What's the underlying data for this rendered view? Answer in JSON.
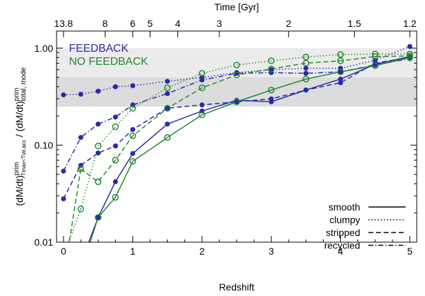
{
  "chart_data": {
    "type": "line",
    "xlabel": "Redshift",
    "top_xlabel": "Time [Gyr]",
    "ylabel_parts": {
      "numerator": "(dM/dt)",
      "numerator_sup": "prim",
      "numerator_sub": "Tmax<Tvir,acc",
      "separator": " / ",
      "denominator": "(dM/dt)",
      "denominator_sup": "prim",
      "denominator_sub": "total, mode"
    },
    "y_scale": "log",
    "xlim": [
      -0.1,
      5.1
    ],
    "ylim": [
      0.01,
      1.5
    ],
    "x_ticks": [
      "0",
      "1",
      "2",
      "3",
      "4",
      "5"
    ],
    "y_ticks": [
      {
        "value": 0.01,
        "label": "0.01"
      },
      {
        "value": 0.1,
        "label": "0.10"
      },
      {
        "value": 1.0,
        "label": "1.00"
      }
    ],
    "top_ticks": [
      {
        "label": "13.8",
        "z": 0.0
      },
      {
        "label": "8",
        "z": 0.6
      },
      {
        "label": "6",
        "z": 1.0
      },
      {
        "label": "5",
        "z": 1.25
      },
      {
        "label": "4",
        "z": 1.65
      },
      {
        "label": "3",
        "z": 2.25
      },
      {
        "label": "2",
        "z": 3.25
      },
      {
        "label": "1.5",
        "z": 4.2
      },
      {
        "label": "1.2",
        "z": 5.0
      }
    ],
    "shaded_bands": [
      {
        "y_from": 0.25,
        "y_to": 1.0,
        "color": "#ebebeb"
      },
      {
        "y_from": 0.25,
        "y_to": 0.5,
        "color": "#dcdcdc"
      }
    ],
    "group_labels": [
      {
        "text": "FEEDBACK",
        "color": "#2a2aaa"
      },
      {
        "text": "NO FEEDBACK",
        "color": "#22882e"
      }
    ],
    "legend": [
      {
        "label": "smooth",
        "style": "solid"
      },
      {
        "label": "clumpy",
        "style": "dotted"
      },
      {
        "label": "stripped",
        "style": "dashed"
      },
      {
        "label": "recycled",
        "style": "dashdot"
      }
    ],
    "legend_position": "bottom-right",
    "series": [
      {
        "group": "FEEDBACK",
        "mode": "smooth",
        "color": "#2a2aaa",
        "style": "solid",
        "marker": "filled",
        "x": [
          0.5,
          0.75,
          1.0,
          1.5,
          2.0,
          2.5,
          3.0,
          3.5,
          4.0,
          4.5,
          5.0
        ],
        "y": [
          0.018,
          0.042,
          0.082,
          0.165,
          0.225,
          0.29,
          0.28,
          0.37,
          0.48,
          0.68,
          0.82
        ]
      },
      {
        "group": "FEEDBACK",
        "mode": "clumpy",
        "color": "#2a2aaa",
        "style": "dotted",
        "marker": "filled",
        "x": [
          0.0,
          0.25,
          0.5,
          0.75,
          1.0,
          1.5,
          2.0,
          2.5,
          3.0,
          3.5,
          4.0,
          4.5,
          5.0
        ],
        "y": [
          0.33,
          0.335,
          0.36,
          0.4,
          0.41,
          0.455,
          0.5,
          0.56,
          0.6,
          0.62,
          0.62,
          0.75,
          1.04
        ]
      },
      {
        "group": "FEEDBACK",
        "mode": "stripped",
        "color": "#2a2aaa",
        "style": "dashed",
        "marker": "filled",
        "x": [
          0.0,
          0.25,
          0.5,
          0.75,
          1.0,
          1.5,
          2.0,
          2.5,
          3.0,
          3.5,
          4.0,
          4.5,
          5.0
        ],
        "y": [
          0.028,
          0.062,
          0.083,
          0.098,
          0.145,
          0.24,
          0.26,
          0.28,
          0.3,
          0.37,
          0.44,
          0.7,
          0.8
        ]
      },
      {
        "group": "FEEDBACK",
        "mode": "recycled",
        "color": "#2a2aaa",
        "style": "dashdot",
        "marker": "filled",
        "x": [
          0.0,
          0.25,
          0.5,
          0.75,
          1.0,
          1.5,
          2.0,
          2.5,
          3.0,
          3.5,
          4.0,
          4.5,
          5.0
        ],
        "y": [
          0.054,
          0.12,
          0.165,
          0.195,
          0.26,
          0.34,
          0.47,
          0.55,
          0.56,
          0.55,
          0.57,
          0.67,
          0.78
        ]
      },
      {
        "group": "NO FEEDBACK",
        "mode": "smooth",
        "color": "#22882e",
        "style": "solid",
        "marker": "open",
        "x": [
          0.5,
          0.75,
          1.0,
          1.5,
          2.0,
          2.5,
          3.0,
          3.5,
          4.0,
          4.5,
          5.0
        ],
        "y": [
          0.018,
          0.029,
          0.068,
          0.12,
          0.205,
          0.28,
          0.37,
          0.48,
          0.57,
          0.66,
          0.8
        ]
      },
      {
        "group": "NO FEEDBACK",
        "mode": "clumpy",
        "color": "#22882e",
        "style": "dotted",
        "marker": "open",
        "x": [
          0.25,
          0.5,
          0.75,
          1.0,
          1.5,
          2.0,
          2.5,
          3.0,
          3.5,
          4.0,
          4.5,
          5.0
        ],
        "y": [
          0.022,
          0.098,
          0.155,
          0.24,
          0.39,
          0.55,
          0.67,
          0.74,
          0.81,
          0.86,
          0.87,
          0.87
        ]
      },
      {
        "group": "NO FEEDBACK",
        "mode": "stripped",
        "color": "#22882e",
        "style": "dashed",
        "marker": "open",
        "x": [
          0.25,
          0.5,
          0.75,
          1.0,
          1.5,
          2.0,
          2.5,
          3.0,
          3.5,
          4.0,
          4.5,
          5.0
        ],
        "y": [
          0.057,
          0.042,
          0.07,
          0.125,
          0.24,
          0.39,
          0.53,
          0.61,
          0.7,
          0.74,
          0.82,
          0.83
        ]
      }
    ],
    "tail_segments": [
      {
        "group": "FEEDBACK",
        "mode": "smooth",
        "color": "#2a2aaa",
        "style": "solid",
        "from": {
          "x": 0.5,
          "y": 0.018
        },
        "to": {
          "x": 0.36,
          "y": 0.0098
        }
      },
      {
        "group": "NO FEEDBACK",
        "mode": "smooth",
        "color": "#22882e",
        "style": "solid",
        "from": {
          "x": 0.5,
          "y": 0.018
        },
        "to": {
          "x": 0.38,
          "y": 0.0098
        }
      },
      {
        "group": "NO FEEDBACK",
        "mode": "clumpy",
        "color": "#22882e",
        "style": "dotted",
        "from": {
          "x": 0.25,
          "y": 0.022
        },
        "to": {
          "x": 0.07,
          "y": 0.0098
        }
      },
      {
        "group": "NO FEEDBACK",
        "mode": "stripped",
        "color": "#22882e",
        "style": "dashed",
        "from": {
          "x": 0.25,
          "y": 0.057
        },
        "to": {
          "x": 0.08,
          "y": 0.0098
        }
      }
    ]
  }
}
